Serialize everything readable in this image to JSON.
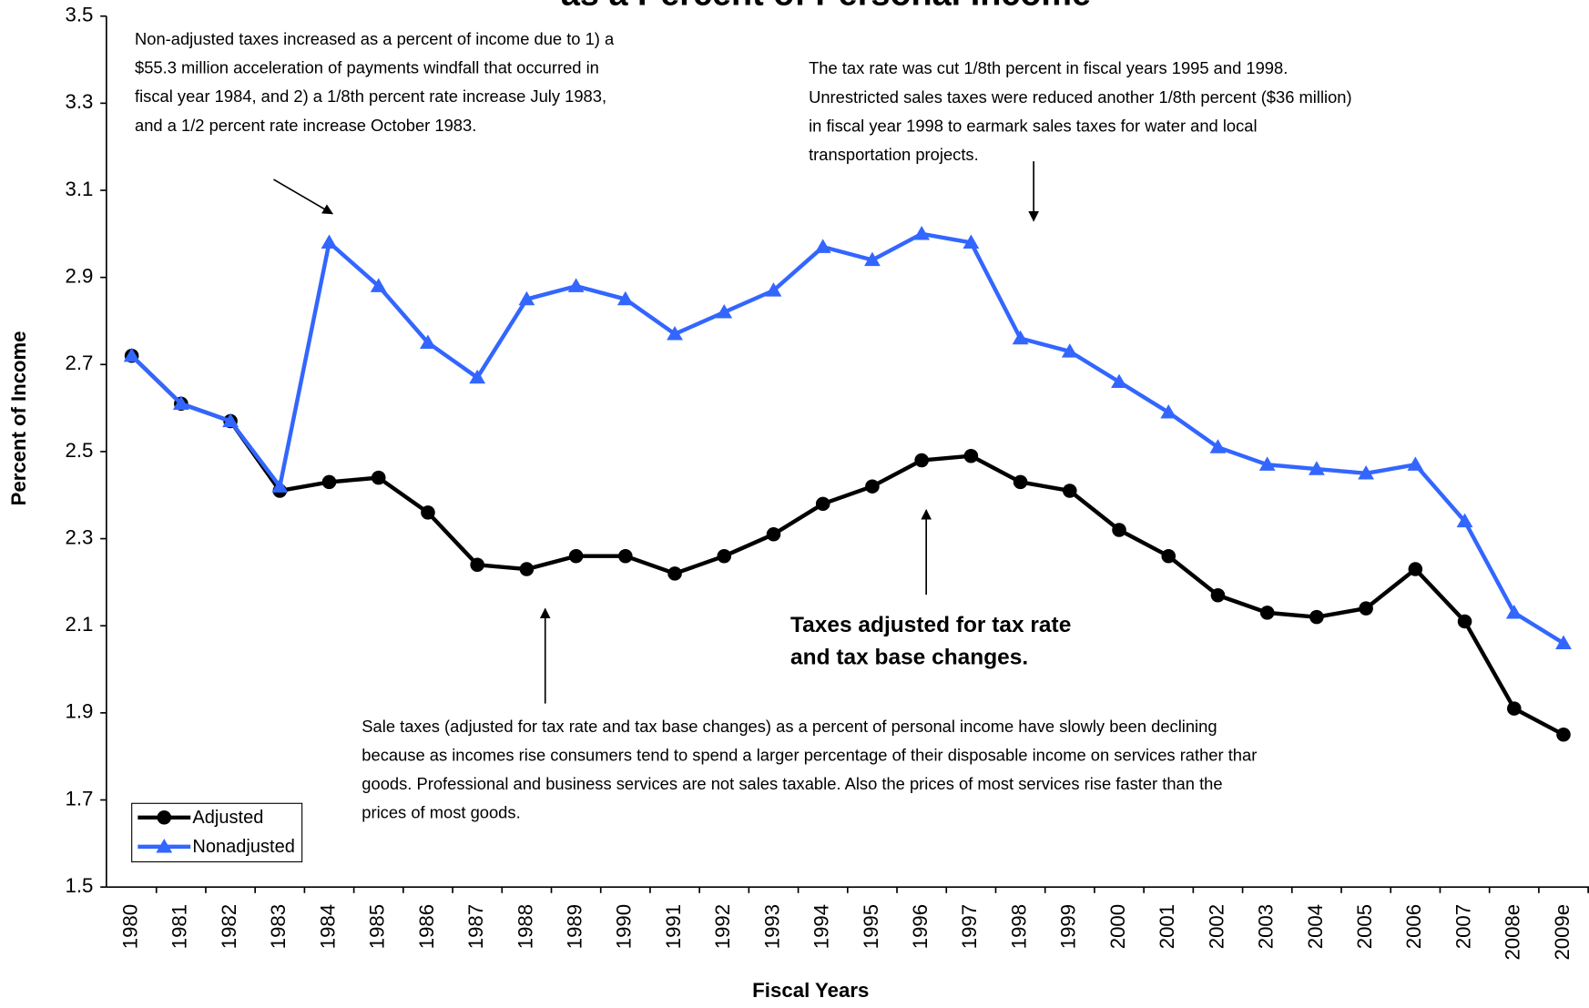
{
  "chart_data": {
    "type": "line",
    "title": "as a Percent of Personal Income",
    "xlabel": "Fiscal Years",
    "ylabel": "Percent of Income",
    "categories": [
      "1980",
      "1981",
      "1982",
      "1983",
      "1984",
      "1985",
      "1986",
      "1987",
      "1988",
      "1989",
      "1990",
      "1991",
      "1992",
      "1993",
      "1994",
      "1995",
      "1996",
      "1997",
      "1998",
      "1999",
      "2000",
      "2001",
      "2002",
      "2003",
      "2004",
      "2005",
      "2006",
      "2007",
      "2008e",
      "2009e"
    ],
    "series": [
      {
        "name": "Adjusted",
        "color": "#000000",
        "marker": "circle",
        "values": [
          2.72,
          2.61,
          2.57,
          2.41,
          2.43,
          2.44,
          2.36,
          2.24,
          2.23,
          2.26,
          2.26,
          2.22,
          2.26,
          2.31,
          2.38,
          2.42,
          2.48,
          2.49,
          2.43,
          2.41,
          2.32,
          2.26,
          2.17,
          2.13,
          2.12,
          2.14,
          2.23,
          2.11,
          1.91,
          1.85
        ]
      },
      {
        "name": "Nonadjusted",
        "color": "#3366ff",
        "marker": "triangle",
        "values": [
          2.72,
          2.61,
          2.57,
          2.42,
          2.98,
          2.88,
          2.75,
          2.67,
          2.85,
          2.88,
          2.85,
          2.77,
          2.82,
          2.87,
          2.97,
          2.94,
          3.0,
          2.98,
          2.76,
          2.73,
          2.66,
          2.59,
          2.51,
          2.47,
          2.46,
          2.45,
          2.47,
          2.34,
          2.13,
          2.06
        ]
      }
    ],
    "ylim": [
      1.5,
      3.5
    ],
    "yticks": [
      1.5,
      1.7,
      1.9,
      2.1,
      2.3,
      2.5,
      2.7,
      2.9,
      3.1,
      3.3,
      3.5
    ],
    "grid": false,
    "legend": "lower left",
    "annotations": [
      {
        "lines": [
          "Non-adjusted taxes increased as a percent of income due to 1) a",
          "$55.3 million acceleration of payments windfall that occurred in",
          "fiscal year 1984, and 2) a 1/8th percent rate increase July 1983,",
          "and a 1/2 percent rate increase October 1983."
        ]
      },
      {
        "lines": [
          "The tax rate was cut 1/8th percent in fiscal years 1995 and 1998.",
          "Unrestricted sales taxes were reduced another 1/8th percent ($36 million)",
          "in fiscal year 1998 to earmark sales taxes for water and local",
          "transportation projects."
        ]
      },
      {
        "lines": [
          "Taxes adjusted for tax rate",
          "and tax base changes."
        ]
      },
      {
        "lines": [
          "Sale taxes (adjusted for tax rate and tax base changes) as a percent of personal income have slowly been declining",
          "because as incomes rise consumers tend to spend a larger percentage of their disposable income on services rather thar",
          "goods. Professional and business services are not sales taxable. Also the prices of most services rise faster than the",
          "prices of most goods."
        ]
      }
    ]
  }
}
